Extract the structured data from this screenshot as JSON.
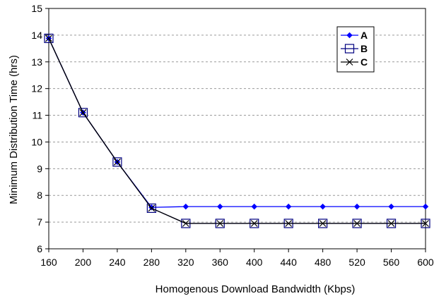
{
  "chart_data": {
    "type": "line",
    "title": "",
    "xlabel": "Homogenous Download Bandwidth (Kbps)",
    "ylabel": "Minimum Distribution Time (hrs)",
    "x": [
      160,
      200,
      240,
      280,
      320,
      360,
      400,
      440,
      480,
      520,
      560,
      600
    ],
    "xlim": [
      160,
      600
    ],
    "ylim": [
      6,
      15
    ],
    "yticks": [
      6,
      7,
      8,
      9,
      10,
      11,
      12,
      13,
      14,
      15
    ],
    "grid": "horizontal-dashed",
    "legend_position": "top-right",
    "series": [
      {
        "name": "A",
        "marker": "diamond",
        "color": "#0000FF",
        "values": [
          13.88,
          11.1,
          9.25,
          7.55,
          7.58,
          7.58,
          7.58,
          7.58,
          7.58,
          7.58,
          7.58,
          7.58
        ]
      },
      {
        "name": "B",
        "marker": "square",
        "color": "#000080",
        "values": [
          13.88,
          11.1,
          9.25,
          7.52,
          6.95,
          6.95,
          6.95,
          6.95,
          6.95,
          6.95,
          6.95,
          6.95
        ]
      },
      {
        "name": "C",
        "marker": "x",
        "color": "#000000",
        "values": [
          13.88,
          11.1,
          9.25,
          7.52,
          6.95,
          6.95,
          6.95,
          6.95,
          6.95,
          6.95,
          6.95,
          6.95
        ]
      }
    ]
  }
}
